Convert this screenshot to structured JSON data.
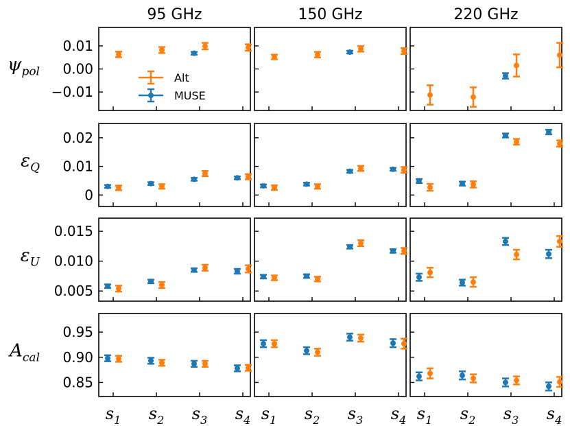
{
  "colors": {
    "muse": "#1f77b4",
    "alt": "#ff7f0e",
    "axis": "#000000"
  },
  "legend": {
    "alt_label": "Alt",
    "muse_label": "MUSE"
  },
  "chart_data": {
    "type": "errorbar-grid",
    "columns": [
      "95 GHz",
      "150 GHz",
      "220 GHz"
    ],
    "x_categories": [
      "s1",
      "s2",
      "s3",
      "s4"
    ],
    "x_tick_labels": [
      {
        "base": "s",
        "sub": "1"
      },
      {
        "base": "s",
        "sub": "2"
      },
      {
        "base": "s",
        "sub": "3"
      },
      {
        "base": "s",
        "sub": "4"
      }
    ],
    "rows": [
      {
        "id": "psi_pol",
        "label": {
          "sym": "ψ",
          "sub": "pol"
        },
        "ylim": [
          -0.018,
          0.018
        ],
        "yticks": [
          {
            "v": 0.01,
            "t": "0.01"
          },
          {
            "v": 0.0,
            "t": "0.00"
          },
          {
            "v": -0.01,
            "t": "−0.01"
          }
        ],
        "panels": [
          {
            "muse": [
              null,
              null,
              {
                "y": 0.0068,
                "e": 0.0006
              },
              null
            ],
            "alt": [
              {
                "y": 0.0063,
                "e": 0.0012
              },
              {
                "y": 0.0082,
                "e": 0.0013
              },
              {
                "y": 0.0099,
                "e": 0.0014
              },
              {
                "y": 0.0093,
                "e": 0.0014
              }
            ]
          },
          {
            "muse": [
              null,
              null,
              {
                "y": 0.0073,
                "e": 0.0006
              },
              null
            ],
            "alt": [
              {
                "y": 0.0052,
                "e": 0.001
              },
              {
                "y": 0.0062,
                "e": 0.0012
              },
              {
                "y": 0.0087,
                "e": 0.0012
              },
              {
                "y": 0.0077,
                "e": 0.0013
              }
            ]
          },
          {
            "muse": [
              null,
              null,
              {
                "y": -0.003,
                "e": 0.0012
              },
              null
            ],
            "alt": [
              {
                "y": -0.0113,
                "e": 0.0042
              },
              {
                "y": -0.0122,
                "e": 0.0042
              },
              {
                "y": 0.0015,
                "e": 0.0048
              },
              {
                "y": 0.006,
                "e": 0.0053
              }
            ]
          }
        ]
      },
      {
        "id": "eps_q",
        "label": {
          "sym": "ε",
          "sub": "Q"
        },
        "ylim": [
          -0.004,
          0.025
        ],
        "yticks": [
          {
            "v": 0.02,
            "t": "0.02"
          },
          {
            "v": 0.01,
            "t": "0.01"
          },
          {
            "v": 0.0,
            "t": "0"
          }
        ],
        "panels": [
          {
            "muse": [
              {
                "y": 0.003,
                "e": 0.0005
              },
              {
                "y": 0.004,
                "e": 0.0005
              },
              {
                "y": 0.0055,
                "e": 0.0005
              },
              {
                "y": 0.006,
                "e": 0.0005
              }
            ],
            "alt": [
              {
                "y": 0.0025,
                "e": 0.0008
              },
              {
                "y": 0.003,
                "e": 0.0008
              },
              {
                "y": 0.0075,
                "e": 0.0009
              },
              {
                "y": 0.0064,
                "e": 0.0009
              }
            ]
          },
          {
            "muse": [
              {
                "y": 0.0032,
                "e": 0.0005
              },
              {
                "y": 0.0038,
                "e": 0.0005
              },
              {
                "y": 0.0083,
                "e": 0.0005
              },
              {
                "y": 0.009,
                "e": 0.0005
              }
            ],
            "alt": [
              {
                "y": 0.0026,
                "e": 0.0008
              },
              {
                "y": 0.003,
                "e": 0.0008
              },
              {
                "y": 0.0093,
                "e": 0.0009
              },
              {
                "y": 0.0088,
                "e": 0.001
              }
            ]
          },
          {
            "muse": [
              {
                "y": 0.0049,
                "e": 0.0007
              },
              {
                "y": 0.004,
                "e": 0.0007
              },
              {
                "y": 0.0208,
                "e": 0.0007
              },
              {
                "y": 0.022,
                "e": 0.0008
              }
            ],
            "alt": [
              {
                "y": 0.0027,
                "e": 0.0012
              },
              {
                "y": 0.0037,
                "e": 0.0011
              },
              {
                "y": 0.0186,
                "e": 0.001
              },
              {
                "y": 0.018,
                "e": 0.0011
              }
            ]
          }
        ]
      },
      {
        "id": "eps_u",
        "label": {
          "sym": "ε",
          "sub": "U"
        },
        "ylim": [
          0.0033,
          0.0172
        ],
        "yticks": [
          {
            "v": 0.015,
            "t": "0.015"
          },
          {
            "v": 0.01,
            "t": "0.010"
          },
          {
            "v": 0.005,
            "t": "0.005"
          }
        ],
        "panels": [
          {
            "muse": [
              {
                "y": 0.0058,
                "e": 0.0003
              },
              {
                "y": 0.0066,
                "e": 0.0003
              },
              {
                "y": 0.0085,
                "e": 0.0003
              },
              {
                "y": 0.0083,
                "e": 0.0004
              }
            ],
            "alt": [
              {
                "y": 0.0054,
                "e": 0.0005
              },
              {
                "y": 0.006,
                "e": 0.0005
              },
              {
                "y": 0.0089,
                "e": 0.0005
              },
              {
                "y": 0.0087,
                "e": 0.0006
              }
            ]
          },
          {
            "muse": [
              {
                "y": 0.0074,
                "e": 0.0003
              },
              {
                "y": 0.0075,
                "e": 0.0003
              },
              {
                "y": 0.0124,
                "e": 0.0003
              },
              {
                "y": 0.0117,
                "e": 0.0003
              }
            ],
            "alt": [
              {
                "y": 0.0072,
                "e": 0.0004
              },
              {
                "y": 0.007,
                "e": 0.0004
              },
              {
                "y": 0.013,
                "e": 0.0005
              },
              {
                "y": 0.0117,
                "e": 0.0005
              }
            ]
          },
          {
            "muse": [
              {
                "y": 0.0073,
                "e": 0.0006
              },
              {
                "y": 0.0064,
                "e": 0.0005
              },
              {
                "y": 0.0133,
                "e": 0.0006
              },
              {
                "y": 0.0112,
                "e": 0.0007
              }
            ],
            "alt": [
              {
                "y": 0.0081,
                "e": 0.0008
              },
              {
                "y": 0.0065,
                "e": 0.0008
              },
              {
                "y": 0.0111,
                "e": 0.0008
              },
              {
                "y": 0.0133,
                "e": 0.0009
              }
            ]
          }
        ]
      },
      {
        "id": "a_cal",
        "label": {
          "sym": "A",
          "sub": "cal"
        },
        "ylim": [
          0.822,
          0.987
        ],
        "yticks": [
          {
            "v": 0.95,
            "t": "0.95"
          },
          {
            "v": 0.9,
            "t": "0.90"
          },
          {
            "v": 0.85,
            "t": "0.85"
          }
        ],
        "panels": [
          {
            "muse": [
              {
                "y": 0.898,
                "e": 0.006
              },
              {
                "y": 0.893,
                "e": 0.006
              },
              {
                "y": 0.887,
                "e": 0.006
              },
              {
                "y": 0.878,
                "e": 0.006
              }
            ],
            "alt": [
              {
                "y": 0.897,
                "e": 0.006
              },
              {
                "y": 0.889,
                "e": 0.006
              },
              {
                "y": 0.887,
                "e": 0.006
              },
              {
                "y": 0.879,
                "e": 0.006
              }
            ]
          },
          {
            "muse": [
              {
                "y": 0.927,
                "e": 0.007
              },
              {
                "y": 0.913,
                "e": 0.007
              },
              {
                "y": 0.94,
                "e": 0.007
              },
              {
                "y": 0.928,
                "e": 0.008
              }
            ],
            "alt": [
              {
                "y": 0.927,
                "e": 0.007
              },
              {
                "y": 0.91,
                "e": 0.007
              },
              {
                "y": 0.938,
                "e": 0.007
              },
              {
                "y": 0.927,
                "e": 0.01
              }
            ]
          },
          {
            "muse": [
              {
                "y": 0.862,
                "e": 0.008
              },
              {
                "y": 0.864,
                "e": 0.008
              },
              {
                "y": 0.85,
                "e": 0.008
              },
              {
                "y": 0.842,
                "e": 0.008
              }
            ],
            "alt": [
              {
                "y": 0.868,
                "e": 0.01
              },
              {
                "y": 0.858,
                "e": 0.008
              },
              {
                "y": 0.854,
                "e": 0.008
              },
              {
                "y": 0.851,
                "e": 0.01
              }
            ]
          }
        ]
      }
    ]
  }
}
